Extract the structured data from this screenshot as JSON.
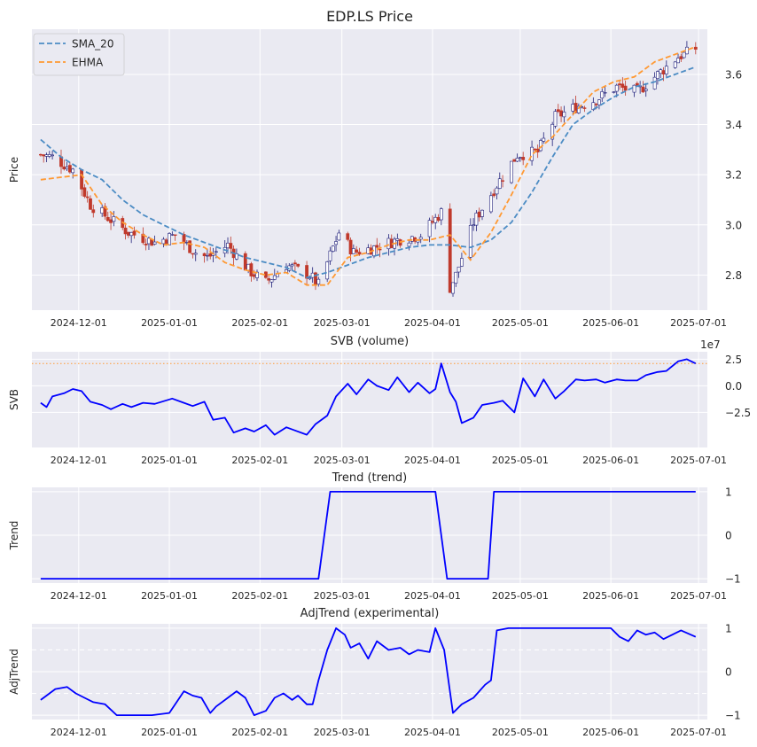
{
  "colors": {
    "panel_bg": "#eaeaf2",
    "grid": "#ffffff",
    "line": "#0000ff",
    "sma": "#4c8cc4",
    "ehma": "#ff9933",
    "candle_up_edge": "#1f1f7a",
    "candle_down": "#c0392b",
    "svb_ref": "#ff9933"
  },
  "chart_data": [
    {
      "type": "candlestick",
      "title": "EDP.LS Price",
      "ylabel": "Price",
      "xlabel": "",
      "ylim": [
        2.66,
        3.78
      ],
      "yticks": [
        2.8,
        3.0,
        3.2,
        3.4,
        3.6
      ],
      "ytick_labels": [
        "2.8",
        "3.0",
        "3.2",
        "3.4",
        "3.6"
      ],
      "xlim": [
        "2024-11-15",
        "2025-07-04"
      ],
      "xticks": [
        "2024-12-01",
        "2025-01-01",
        "2025-02-01",
        "2025-03-01",
        "2025-04-01",
        "2025-05-01",
        "2025-06-01",
        "2025-07-01"
      ],
      "legend": {
        "placement": "top-left",
        "entries": [
          "SMA_20",
          "EHMA"
        ]
      },
      "grid": true,
      "ohlc_anchors": {
        "dates": [
          "2024-11-18",
          "2024-11-22",
          "2024-11-29",
          "2024-12-05",
          "2024-12-12",
          "2024-12-18",
          "2024-12-27",
          "2025-01-03",
          "2025-01-10",
          "2025-01-14",
          "2025-01-21",
          "2025-01-28",
          "2025-02-03",
          "2025-02-10",
          "2025-02-18",
          "2025-02-21",
          "2025-02-28",
          "2025-03-05",
          "2025-03-12",
          "2025-03-20",
          "2025-03-28",
          "2025-04-04",
          "2025-04-07",
          "2025-04-09",
          "2025-04-15",
          "2025-04-23",
          "2025-04-30",
          "2025-05-07",
          "2025-05-13",
          "2025-05-20",
          "2025-05-27",
          "2025-06-03",
          "2025-06-10",
          "2025-06-17",
          "2025-06-24",
          "2025-06-30"
        ],
        "close": [
          3.28,
          3.27,
          3.22,
          3.08,
          3.02,
          2.97,
          2.93,
          2.96,
          2.89,
          2.87,
          2.92,
          2.82,
          2.77,
          2.84,
          2.8,
          2.76,
          2.97,
          2.89,
          2.91,
          2.94,
          2.96,
          3.05,
          2.75,
          2.8,
          3.01,
          3.16,
          3.28,
          3.29,
          3.43,
          3.47,
          3.5,
          3.55,
          3.53,
          3.6,
          3.67,
          3.7
        ]
      },
      "series": [
        {
          "name": "SMA_20",
          "x": [
            "2024-11-18",
            "2024-11-25",
            "2024-12-02",
            "2024-12-09",
            "2024-12-16",
            "2024-12-23",
            "2024-12-30",
            "2025-01-06",
            "2025-01-13",
            "2025-01-20",
            "2025-01-27",
            "2025-02-03",
            "2025-02-10",
            "2025-02-17",
            "2025-02-24",
            "2025-03-03",
            "2025-03-10",
            "2025-03-17",
            "2025-03-24",
            "2025-03-31",
            "2025-04-07",
            "2025-04-14",
            "2025-04-21",
            "2025-04-28",
            "2025-05-05",
            "2025-05-12",
            "2025-05-19",
            "2025-05-26",
            "2025-06-02",
            "2025-06-09",
            "2025-06-16",
            "2025-06-23",
            "2025-06-30"
          ],
          "values": [
            3.34,
            3.27,
            3.22,
            3.18,
            3.1,
            3.04,
            3.0,
            2.96,
            2.93,
            2.9,
            2.87,
            2.85,
            2.83,
            2.79,
            2.81,
            2.84,
            2.87,
            2.89,
            2.91,
            2.92,
            2.92,
            2.91,
            2.94,
            3.01,
            3.13,
            3.27,
            3.4,
            3.46,
            3.51,
            3.55,
            3.57,
            3.6,
            3.63
          ]
        },
        {
          "name": "EHMA",
          "x": [
            "2024-11-18",
            "2024-11-25",
            "2024-12-02",
            "2024-12-09",
            "2024-12-16",
            "2024-12-23",
            "2024-12-30",
            "2025-01-06",
            "2025-01-13",
            "2025-01-20",
            "2025-01-27",
            "2025-02-03",
            "2025-02-10",
            "2025-02-17",
            "2025-02-24",
            "2025-03-03",
            "2025-03-10",
            "2025-03-17",
            "2025-03-24",
            "2025-03-31",
            "2025-04-07",
            "2025-04-14",
            "2025-04-21",
            "2025-04-28",
            "2025-05-05",
            "2025-05-12",
            "2025-05-19",
            "2025-05-26",
            "2025-06-02",
            "2025-06-09",
            "2025-06-16",
            "2025-06-23",
            "2025-06-30"
          ],
          "values": [
            3.18,
            3.19,
            3.2,
            3.08,
            3.01,
            2.96,
            2.92,
            2.93,
            2.91,
            2.85,
            2.82,
            2.8,
            2.81,
            2.76,
            2.76,
            2.87,
            2.89,
            2.92,
            2.94,
            2.94,
            2.96,
            2.86,
            2.97,
            3.12,
            3.28,
            3.35,
            3.44,
            3.53,
            3.57,
            3.59,
            3.65,
            3.68,
            3.71
          ]
        }
      ]
    },
    {
      "type": "line",
      "title": "SVB (volume)",
      "ylabel": "SVB",
      "xlabel": "",
      "offset_label": "1e7",
      "ylim": [
        -5.8,
        3.2
      ],
      "yticks": [
        -2.5,
        0.0,
        2.5
      ],
      "ytick_labels": [
        "−2.5",
        "0.0",
        "2.5"
      ],
      "reference_line": 2.1,
      "xlim": [
        "2024-11-15",
        "2025-07-04"
      ],
      "xticks": [
        "2024-12-01",
        "2025-01-01",
        "2025-02-01",
        "2025-03-01",
        "2025-04-01",
        "2025-05-01",
        "2025-06-01",
        "2025-07-01"
      ],
      "grid": true,
      "series": [
        {
          "x": [
            "2024-11-18",
            "2024-11-20",
            "2024-11-22",
            "2024-11-26",
            "2024-11-29",
            "2024-12-02",
            "2024-12-05",
            "2024-12-09",
            "2024-12-12",
            "2024-12-16",
            "2024-12-19",
            "2024-12-23",
            "2024-12-27",
            "2025-01-02",
            "2025-01-06",
            "2025-01-09",
            "2025-01-13",
            "2025-01-16",
            "2025-01-20",
            "2025-01-23",
            "2025-01-27",
            "2025-01-30",
            "2025-02-03",
            "2025-02-06",
            "2025-02-10",
            "2025-02-13",
            "2025-02-17",
            "2025-02-20",
            "2025-02-24",
            "2025-02-27",
            "2025-03-03",
            "2025-03-06",
            "2025-03-10",
            "2025-03-13",
            "2025-03-17",
            "2025-03-20",
            "2025-03-24",
            "2025-03-27",
            "2025-03-31",
            "2025-04-02",
            "2025-04-04",
            "2025-04-07",
            "2025-04-09",
            "2025-04-11",
            "2025-04-15",
            "2025-04-18",
            "2025-04-22",
            "2025-04-25",
            "2025-04-29",
            "2025-05-02",
            "2025-05-06",
            "2025-05-09",
            "2025-05-13",
            "2025-05-16",
            "2025-05-20",
            "2025-05-23",
            "2025-05-27",
            "2025-05-30",
            "2025-06-03",
            "2025-06-06",
            "2025-06-10",
            "2025-06-13",
            "2025-06-17",
            "2025-06-20",
            "2025-06-24",
            "2025-06-27",
            "2025-06-30"
          ],
          "values": [
            -1.6,
            -2.0,
            -1.0,
            -0.7,
            -0.3,
            -0.5,
            -1.5,
            -1.8,
            -2.2,
            -1.7,
            -2.0,
            -1.6,
            -1.7,
            -1.2,
            -1.6,
            -1.9,
            -1.5,
            -3.2,
            -3.0,
            -4.4,
            -4.0,
            -4.3,
            -3.7,
            -4.6,
            -3.9,
            -4.2,
            -4.6,
            -3.6,
            -2.8,
            -1.0,
            0.2,
            -0.8,
            0.6,
            0.0,
            -0.4,
            0.8,
            -0.6,
            0.3,
            -0.7,
            -0.3,
            2.1,
            -0.6,
            -1.5,
            -3.5,
            -3.0,
            -1.8,
            -1.6,
            -1.4,
            -2.5,
            0.7,
            -1.0,
            0.6,
            -1.2,
            -0.5,
            0.6,
            0.5,
            0.6,
            0.3,
            0.6,
            0.5,
            0.5,
            1.0,
            1.3,
            1.4,
            2.3,
            2.5,
            2.1
          ]
        }
      ]
    },
    {
      "type": "line",
      "title": "Trend (trend)",
      "ylabel": "Trend",
      "xlabel": "",
      "ylim": [
        -1.1,
        1.1
      ],
      "yticks": [
        -1,
        0,
        1
      ],
      "ytick_labels": [
        "−1",
        "0",
        "1"
      ],
      "xlim": [
        "2024-11-15",
        "2025-07-04"
      ],
      "xticks": [
        "2024-12-01",
        "2025-01-01",
        "2025-02-01",
        "2025-03-01",
        "2025-04-01",
        "2025-05-01",
        "2025-06-01",
        "2025-07-01"
      ],
      "grid": true,
      "series": [
        {
          "x": [
            "2024-11-18",
            "2025-02-21",
            "2025-02-25",
            "2025-04-02",
            "2025-04-06",
            "2025-04-20",
            "2025-04-22",
            "2025-06-30"
          ],
          "values": [
            -1,
            -1,
            1,
            1,
            -1,
            -1,
            1,
            1
          ]
        }
      ]
    },
    {
      "type": "line",
      "title": "AdjTrend (experimental)",
      "ylabel": "AdjTrend",
      "xlabel": "",
      "ylim": [
        -1.1,
        1.1
      ],
      "yticks": [
        -1,
        0,
        1
      ],
      "ytick_labels": [
        "−1",
        "0",
        "1"
      ],
      "dashed_levels": [
        0.5,
        -0.5
      ],
      "xlim": [
        "2024-11-15",
        "2025-07-04"
      ],
      "xticks": [
        "2024-12-01",
        "2025-01-01",
        "2025-02-01",
        "2025-03-01",
        "2025-04-01",
        "2025-05-01",
        "2025-06-01",
        "2025-07-01"
      ],
      "grid": true,
      "series": [
        {
          "x": [
            "2024-11-18",
            "2024-11-20",
            "2024-11-23",
            "2024-11-27",
            "2024-11-30",
            "2024-12-03",
            "2024-12-06",
            "2024-12-10",
            "2024-12-14",
            "2024-12-17",
            "2024-12-20",
            "2024-12-26",
            "2025-01-01",
            "2025-01-06",
            "2025-01-09",
            "2025-01-12",
            "2025-01-15",
            "2025-01-17",
            "2025-01-21",
            "2025-01-24",
            "2025-01-27",
            "2025-01-30",
            "2025-02-03",
            "2025-02-06",
            "2025-02-09",
            "2025-02-12",
            "2025-02-14",
            "2025-02-17",
            "2025-02-19",
            "2025-02-21",
            "2025-02-24",
            "2025-02-27",
            "2025-03-02",
            "2025-03-04",
            "2025-03-07",
            "2025-03-10",
            "2025-03-13",
            "2025-03-17",
            "2025-03-21",
            "2025-03-24",
            "2025-03-27",
            "2025-03-31",
            "2025-04-02",
            "2025-04-05",
            "2025-04-08",
            "2025-04-11",
            "2025-04-15",
            "2025-04-19",
            "2025-04-21",
            "2025-04-23",
            "2025-04-27",
            "2025-05-04",
            "2025-05-11",
            "2025-05-18",
            "2025-05-25",
            "2025-06-01",
            "2025-06-04",
            "2025-06-07",
            "2025-06-10",
            "2025-06-13",
            "2025-06-16",
            "2025-06-19",
            "2025-06-22",
            "2025-06-25",
            "2025-06-30"
          ],
          "values": [
            -0.65,
            -0.55,
            -0.4,
            -0.35,
            -0.5,
            -0.6,
            -0.7,
            -0.75,
            -1.0,
            -1.0,
            -1.0,
            -1.0,
            -0.95,
            -0.45,
            -0.55,
            -0.6,
            -0.95,
            -0.8,
            -0.6,
            -0.45,
            -0.6,
            -1.0,
            -0.9,
            -0.6,
            -0.5,
            -0.65,
            -0.55,
            -0.75,
            -0.75,
            -0.2,
            0.5,
            1.0,
            0.85,
            0.55,
            0.65,
            0.3,
            0.7,
            0.5,
            0.55,
            0.4,
            0.5,
            0.45,
            1.0,
            0.5,
            -0.95,
            -0.75,
            -0.6,
            -0.3,
            -0.2,
            0.95,
            1.0,
            1.0,
            1.0,
            1.0,
            1.0,
            1.0,
            0.8,
            0.7,
            0.95,
            0.85,
            0.9,
            0.75,
            0.85,
            0.95,
            0.8
          ]
        }
      ]
    }
  ]
}
